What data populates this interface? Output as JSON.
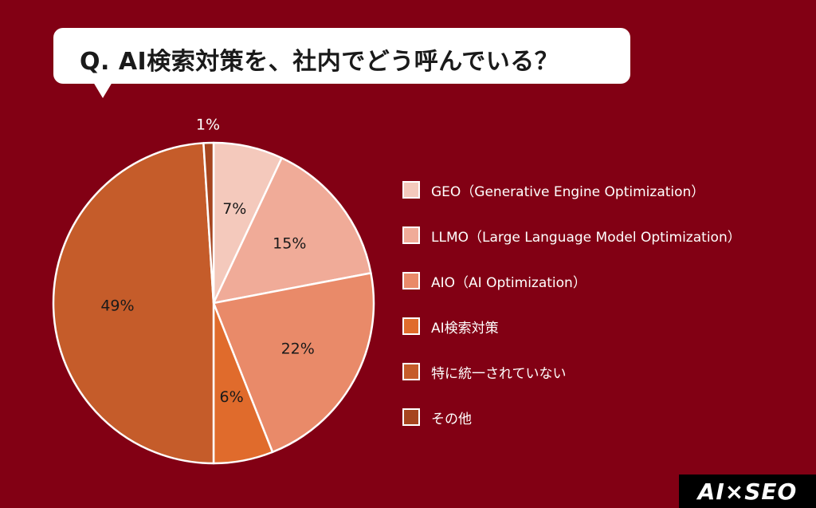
{
  "question": "Q. AI検索対策を、社内でどう呼んでいる？",
  "logo_text": "AI×SEO",
  "chart_data": {
    "type": "pie",
    "title": "Q. AI検索対策を、社内でどう呼んでいる？",
    "unit": "%",
    "slices": [
      {
        "label": "GEO（Generative Engine Optimization）",
        "value": 7,
        "display": "7%",
        "color": "#f4c9bc"
      },
      {
        "label": "LLMO（Large Language Model Optimization）",
        "value": 15,
        "display": "15%",
        "color": "#f0ab98"
      },
      {
        "label": "AIO（AI Optimization）",
        "value": 22,
        "display": "22%",
        "color": "#e98a69"
      },
      {
        "label": "AI検索対策",
        "value": 6,
        "display": "6%",
        "color": "#e06b2c"
      },
      {
        "label": "特に統一されていない",
        "value": 49,
        "display": "49%",
        "color": "#c55c2a"
      },
      {
        "label": "その他",
        "value": 1,
        "display": "1%",
        "color": "#a6451f"
      }
    ],
    "legend_position": "right",
    "slice_border_color": "#ffffff",
    "label_color": "#1a1a1a",
    "outside_label_color": "#ffffff"
  }
}
